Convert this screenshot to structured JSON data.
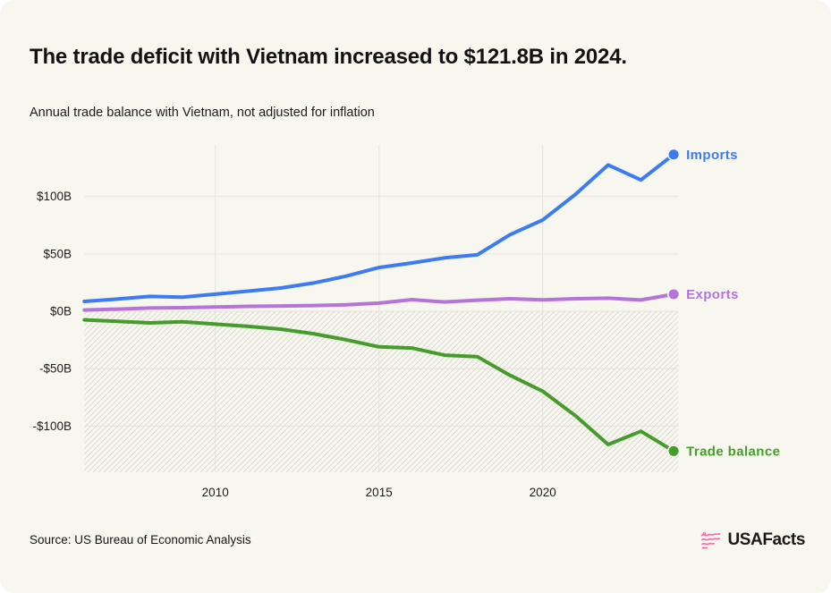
{
  "header": {
    "title": "The trade deficit with Vietnam increased to $121.8B in 2024.",
    "subtitle": "Annual trade balance with Vietnam, not adjusted for inflation"
  },
  "footer": {
    "source": "Source: US Bureau of Economic Analysis",
    "brand": "USAFacts"
  },
  "colors": {
    "card_background": "#f8f7ef",
    "imports": "#3c7bf4",
    "exports": "#b673da",
    "trade_balance": "#459c2d",
    "gridline": "#e6e4dc",
    "hatch_stripe": "#dbdad2",
    "brand_pink": "#f46ba9",
    "text": "#1c1c1c"
  },
  "chart_data": {
    "type": "line",
    "title": "Annual trade balance with Vietnam, not adjusted for inflation",
    "x": [
      2006,
      2007,
      2008,
      2009,
      2010,
      2011,
      2012,
      2013,
      2014,
      2015,
      2016,
      2017,
      2018,
      2019,
      2020,
      2021,
      2022,
      2023,
      2024
    ],
    "series": [
      {
        "name": "Imports",
        "color": "#3c7bf4",
        "values": [
          8.6,
          10.6,
          12.9,
          12.3,
          14.9,
          17.5,
          20.3,
          24.6,
          30.6,
          38.1,
          42.1,
          46.5,
          49.2,
          66.7,
          79.6,
          101.9,
          127.5,
          114.4,
          136.6
        ]
      },
      {
        "name": "Exports",
        "color": "#b673da",
        "values": [
          1.1,
          1.9,
          2.8,
          3.1,
          3.7,
          4.3,
          4.6,
          5.0,
          5.7,
          7.1,
          10.1,
          8.1,
          9.7,
          10.9,
          10.0,
          10.9,
          11.4,
          9.8,
          14.8
        ]
      },
      {
        "name": "Trade balance",
        "color": "#459c2d",
        "values": [
          -7.5,
          -8.7,
          -10.1,
          -9.2,
          -11.2,
          -13.2,
          -15.6,
          -19.6,
          -24.9,
          -31.0,
          -32.0,
          -38.3,
          -39.5,
          -55.8,
          -69.7,
          -91.0,
          -116.1,
          -104.6,
          -121.8
        ]
      }
    ],
    "units": "billions of US dollars",
    "y_ticks": [
      {
        "label": "$100B",
        "value": 100
      },
      {
        "label": "$50B",
        "value": 50
      },
      {
        "label": "$0B",
        "value": 0
      },
      {
        "label": "-$50B",
        "value": -50
      },
      {
        "label": "-$100B",
        "value": -100
      }
    ],
    "x_ticks": [
      2010,
      2015,
      2020
    ],
    "ylim": [
      -140,
      145
    ],
    "grid": true,
    "negative_region_hatched": true,
    "legend_position": "right-of-line-ends",
    "line_end_markers": true
  }
}
